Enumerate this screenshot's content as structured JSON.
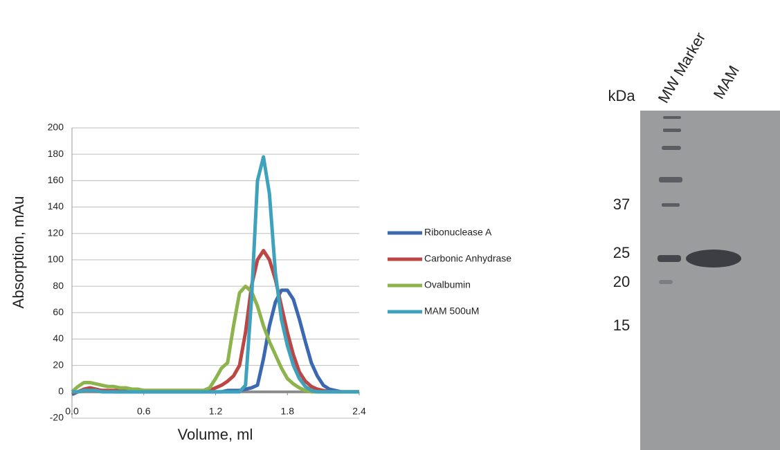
{
  "chart_data": {
    "type": "line",
    "xlabel": "Volume, ml",
    "ylabel": "Absorption, mAu",
    "x": [
      0,
      0.05,
      0.1,
      0.15,
      0.2,
      0.25,
      0.3,
      0.35,
      0.4,
      0.45,
      0.5,
      0.55,
      0.6,
      0.65,
      0.7,
      0.75,
      0.8,
      0.85,
      0.9,
      0.95,
      1.0,
      1.05,
      1.1,
      1.15,
      1.2,
      1.25,
      1.3,
      1.35,
      1.4,
      1.45,
      1.5,
      1.55,
      1.6,
      1.65,
      1.7,
      1.75,
      1.8,
      1.85,
      1.9,
      1.95,
      2.0,
      2.05,
      2.1,
      2.15,
      2.2,
      2.25,
      2.3,
      2.35,
      2.4
    ],
    "series": [
      {
        "name": "Ribonuclease A",
        "color": "#3c67b1",
        "values": [
          -2,
          0,
          1,
          2,
          1,
          1,
          1,
          0,
          0,
          0,
          0,
          0,
          0,
          0,
          0,
          0,
          0,
          0,
          0,
          0,
          0,
          0,
          0,
          0,
          0,
          0,
          1,
          1,
          1,
          2,
          3,
          5,
          25,
          50,
          68,
          77,
          77,
          70,
          55,
          38,
          22,
          12,
          5,
          2,
          1,
          0,
          0,
          0,
          0
        ]
      },
      {
        "name": "Carbonic Anhydrase",
        "color": "#bb4643",
        "values": [
          -1,
          0,
          2,
          3,
          2,
          1,
          1,
          1,
          1,
          1,
          1,
          1,
          1,
          1,
          1,
          1,
          1,
          1,
          1,
          1,
          1,
          1,
          1,
          1,
          3,
          5,
          8,
          12,
          20,
          45,
          80,
          100,
          107,
          100,
          85,
          65,
          45,
          28,
          15,
          8,
          4,
          2,
          1,
          0,
          0,
          0,
          0,
          0,
          0
        ]
      },
      {
        "name": "Ovalbumin",
        "color": "#8cb34c",
        "values": [
          0,
          4,
          7,
          7,
          6,
          5,
          4,
          4,
          3,
          3,
          2,
          2,
          1,
          1,
          1,
          1,
          1,
          1,
          1,
          1,
          1,
          1,
          1,
          3,
          10,
          18,
          22,
          50,
          75,
          80,
          76,
          65,
          50,
          38,
          28,
          18,
          10,
          6,
          3,
          1,
          0,
          0,
          0,
          0,
          0,
          0,
          0,
          0,
          0
        ]
      },
      {
        "name": "MAM 500uM",
        "color": "#3ea2bc",
        "values": [
          0,
          0,
          1,
          1,
          1,
          0,
          0,
          0,
          0,
          0,
          0,
          0,
          0,
          0,
          0,
          0,
          0,
          0,
          0,
          0,
          0,
          0,
          0,
          0,
          0,
          0,
          0,
          0,
          0,
          5,
          70,
          160,
          178,
          150,
          90,
          55,
          35,
          20,
          10,
          4,
          1,
          0,
          0,
          0,
          0,
          0,
          0,
          0,
          0
        ]
      }
    ],
    "xlim": [
      0,
      2.4
    ],
    "xticks": [
      {
        "value": 0,
        "label": "0.0"
      },
      0.6,
      1.2,
      1.8,
      2.4
    ],
    "ylim": [
      -20,
      200
    ],
    "yticks": [
      -20,
      0,
      20,
      40,
      60,
      80,
      100,
      120,
      140,
      160,
      180,
      200
    ],
    "grid": true,
    "legend": "right"
  },
  "gel": {
    "unit": "kDa",
    "lanes": [
      "MW Marker",
      "MAM"
    ],
    "markers": [
      "37",
      "25",
      "20",
      "15"
    ]
  }
}
